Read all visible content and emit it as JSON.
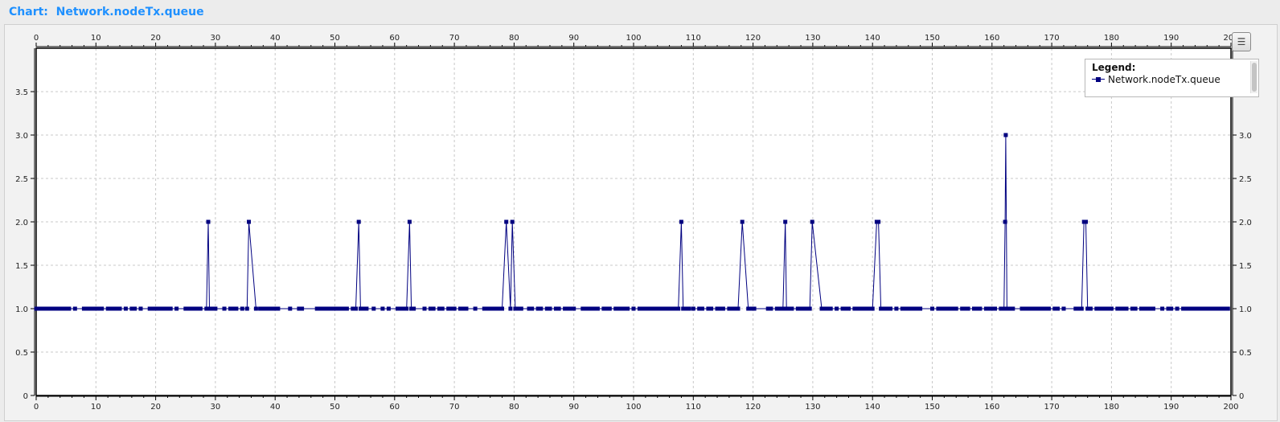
{
  "header": {
    "prefix": "Chart:",
    "name": "Network.nodeTx.queue"
  },
  "legend": {
    "title": "Legend:",
    "items": [
      "Network.nodeTx.queue"
    ]
  },
  "icons": {
    "legend_toggle": "list-icon"
  },
  "colors": {
    "series": "#000080",
    "title": "#1e90ff",
    "grid": "#c8c8c8"
  },
  "chart_data": {
    "type": "line",
    "title": "Network.nodeTx.queue",
    "xlabel": "",
    "ylabel": "",
    "xlim": [
      0,
      200
    ],
    "ylim": [
      0,
      4
    ],
    "x_ticks": [
      0,
      10,
      20,
      30,
      40,
      50,
      60,
      70,
      80,
      90,
      100,
      110,
      120,
      130,
      140,
      150,
      160,
      170,
      180,
      190,
      200
    ],
    "y_ticks": [
      0,
      0.5,
      1.0,
      1.5,
      2.0,
      2.5,
      3.0,
      3.5
    ],
    "y_tick_labels": [
      "0",
      "0.5",
      "1.0",
      "1.5",
      "2.0",
      "2.5",
      "3.0",
      "3.5"
    ],
    "x_axes": [
      "top",
      "bottom"
    ],
    "y_axes": [
      "left",
      "right"
    ],
    "grid": true,
    "legend_position": "top-right",
    "series": [
      {
        "name": "Network.nodeTx.queue",
        "marker": "square",
        "points": [
          [
            0,
            1
          ],
          [
            0.5,
            1
          ],
          [
            1,
            1
          ],
          [
            1.5,
            1
          ],
          [
            2,
            1
          ],
          [
            2.5,
            1
          ],
          [
            3,
            1
          ],
          [
            3.5,
            1
          ],
          [
            4,
            1
          ],
          [
            4.5,
            1
          ],
          [
            5,
            1
          ],
          [
            5.5,
            1
          ],
          [
            6.5,
            1
          ],
          [
            8,
            1
          ],
          [
            8.5,
            1
          ],
          [
            9,
            1
          ],
          [
            9.5,
            1
          ],
          [
            10,
            1
          ],
          [
            10.5,
            1
          ],
          [
            11,
            1
          ],
          [
            12,
            1
          ],
          [
            12.5,
            1
          ],
          [
            13,
            1
          ],
          [
            13.5,
            1
          ],
          [
            14,
            1
          ],
          [
            15,
            1
          ],
          [
            16,
            1
          ],
          [
            16.5,
            1
          ],
          [
            17.5,
            1
          ],
          [
            19,
            1
          ],
          [
            19.5,
            1
          ],
          [
            20,
            1
          ],
          [
            20.5,
            1
          ],
          [
            21,
            1
          ],
          [
            21.5,
            1
          ],
          [
            22,
            1
          ],
          [
            22.5,
            1
          ],
          [
            23.5,
            1
          ],
          [
            25,
            1
          ],
          [
            25.5,
            1
          ],
          [
            26,
            1
          ],
          [
            26.5,
            1
          ],
          [
            27,
            1
          ],
          [
            27.5,
            1
          ],
          [
            28.5,
            1
          ],
          [
            28.8,
            2
          ],
          [
            29,
            1
          ],
          [
            29.5,
            1
          ],
          [
            30,
            1
          ],
          [
            31.5,
            1
          ],
          [
            32.5,
            1
          ],
          [
            33,
            1
          ],
          [
            33.5,
            1
          ],
          [
            34.5,
            1
          ],
          [
            35.3,
            1
          ],
          [
            35.6,
            2
          ],
          [
            36.8,
            1
          ],
          [
            37.5,
            1
          ],
          [
            38,
            1
          ],
          [
            38.5,
            1
          ],
          [
            39,
            1
          ],
          [
            39.5,
            1
          ],
          [
            40,
            1
          ],
          [
            40.5,
            1
          ],
          [
            42.5,
            1
          ],
          [
            44,
            1
          ],
          [
            44.5,
            1
          ],
          [
            47,
            1
          ],
          [
            47.5,
            1
          ],
          [
            48,
            1
          ],
          [
            48.5,
            1
          ],
          [
            49,
            1
          ],
          [
            49.5,
            1
          ],
          [
            50,
            1
          ],
          [
            50.5,
            1
          ],
          [
            51,
            1
          ],
          [
            51.5,
            1
          ],
          [
            52,
            1
          ],
          [
            53,
            1
          ],
          [
            53.5,
            1
          ],
          [
            54,
            2
          ],
          [
            54.3,
            1
          ],
          [
            54.8,
            1
          ],
          [
            55.3,
            1
          ],
          [
            56.5,
            1
          ],
          [
            58,
            1
          ],
          [
            59,
            1
          ],
          [
            60.5,
            1
          ],
          [
            61,
            1
          ],
          [
            61.5,
            1
          ],
          [
            62,
            1
          ],
          [
            62.5,
            2
          ],
          [
            62.8,
            1
          ],
          [
            63.2,
            1
          ],
          [
            65,
            1
          ],
          [
            66,
            1
          ],
          [
            66.5,
            1
          ],
          [
            67.5,
            1
          ],
          [
            68,
            1
          ],
          [
            69,
            1
          ],
          [
            69.5,
            1
          ],
          [
            70,
            1
          ],
          [
            71,
            1
          ],
          [
            71.5,
            1
          ],
          [
            72,
            1
          ],
          [
            73.5,
            1
          ],
          [
            75,
            1
          ],
          [
            75.5,
            1
          ],
          [
            76,
            1
          ],
          [
            76.5,
            1
          ],
          [
            77,
            1
          ],
          [
            77.5,
            1
          ],
          [
            78,
            1
          ],
          [
            78.7,
            2
          ],
          [
            79.4,
            1
          ],
          [
            79.7,
            2
          ],
          [
            80.2,
            1
          ],
          [
            80.7,
            1
          ],
          [
            81.2,
            1
          ],
          [
            82.5,
            1
          ],
          [
            83,
            1
          ],
          [
            84,
            1
          ],
          [
            84.5,
            1
          ],
          [
            85.5,
            1
          ],
          [
            86,
            1
          ],
          [
            87,
            1
          ],
          [
            87.5,
            1
          ],
          [
            88.5,
            1
          ],
          [
            89,
            1
          ],
          [
            89.5,
            1
          ],
          [
            90,
            1
          ],
          [
            91.5,
            1
          ],
          [
            92,
            1
          ],
          [
            92.5,
            1
          ],
          [
            93,
            1
          ],
          [
            93.5,
            1
          ],
          [
            94,
            1
          ],
          [
            95,
            1
          ],
          [
            95.5,
            1
          ],
          [
            96,
            1
          ],
          [
            97,
            1
          ],
          [
            97.5,
            1
          ],
          [
            98,
            1
          ],
          [
            98.5,
            1
          ],
          [
            99,
            1
          ],
          [
            100,
            1
          ],
          [
            101,
            1
          ],
          [
            101.5,
            1
          ],
          [
            102,
            1
          ],
          [
            102.5,
            1
          ],
          [
            103,
            1
          ],
          [
            103.5,
            1
          ],
          [
            104,
            1
          ],
          [
            104.5,
            1
          ],
          [
            105,
            1
          ],
          [
            105.5,
            1
          ],
          [
            106,
            1
          ],
          [
            106.5,
            1
          ],
          [
            107,
            1
          ],
          [
            107.5,
            1
          ],
          [
            108,
            2
          ],
          [
            108.3,
            1
          ],
          [
            108.8,
            1
          ],
          [
            109.3,
            1
          ],
          [
            110,
            1
          ],
          [
            111,
            1
          ],
          [
            111.5,
            1
          ],
          [
            112.5,
            1
          ],
          [
            113,
            1
          ],
          [
            114,
            1
          ],
          [
            114.5,
            1
          ],
          [
            115,
            1
          ],
          [
            116,
            1
          ],
          [
            116.5,
            1
          ],
          [
            117,
            1
          ],
          [
            117.5,
            1
          ],
          [
            118.2,
            2
          ],
          [
            119.2,
            1
          ],
          [
            119.7,
            1
          ],
          [
            120.2,
            1
          ],
          [
            122.5,
            1
          ],
          [
            123,
            1
          ],
          [
            124,
            1
          ],
          [
            124.5,
            1
          ],
          [
            125,
            1
          ],
          [
            125.4,
            2
          ],
          [
            125.6,
            1
          ],
          [
            126,
            1
          ],
          [
            126.5,
            1
          ],
          [
            127.5,
            1
          ],
          [
            128,
            1
          ],
          [
            128.5,
            1
          ],
          [
            129,
            1
          ],
          [
            129.5,
            1
          ],
          [
            129.9,
            2
          ],
          [
            131.5,
            1
          ],
          [
            132,
            1
          ],
          [
            132.5,
            1
          ],
          [
            133,
            1
          ],
          [
            134,
            1
          ],
          [
            135,
            1
          ],
          [
            135.5,
            1
          ],
          [
            136,
            1
          ],
          [
            137,
            1
          ],
          [
            137.5,
            1
          ],
          [
            138,
            1
          ],
          [
            138.5,
            1
          ],
          [
            139,
            1
          ],
          [
            139.5,
            1
          ],
          [
            140,
            1
          ],
          [
            140.7,
            2
          ],
          [
            141,
            2
          ],
          [
            141.4,
            1
          ],
          [
            142,
            1
          ],
          [
            142.5,
            1
          ],
          [
            143,
            1
          ],
          [
            144,
            1
          ],
          [
            145,
            1
          ],
          [
            145.5,
            1
          ],
          [
            146,
            1
          ],
          [
            146.5,
            1
          ],
          [
            147,
            1
          ],
          [
            147.5,
            1
          ],
          [
            148,
            1
          ],
          [
            150,
            1
          ],
          [
            151,
            1
          ],
          [
            151.5,
            1
          ],
          [
            152,
            1
          ],
          [
            152.5,
            1
          ],
          [
            153,
            1
          ],
          [
            153.5,
            1
          ],
          [
            154,
            1
          ],
          [
            155,
            1
          ],
          [
            155.5,
            1
          ],
          [
            156,
            1
          ],
          [
            157,
            1
          ],
          [
            157.5,
            1
          ],
          [
            158,
            1
          ],
          [
            159,
            1
          ],
          [
            159.5,
            1
          ],
          [
            160,
            1
          ],
          [
            160.5,
            1
          ],
          [
            161.5,
            1
          ],
          [
            162,
            1
          ],
          [
            162.2,
            2
          ],
          [
            162.3,
            3
          ],
          [
            162.5,
            1
          ],
          [
            163,
            1
          ],
          [
            163.5,
            1
          ],
          [
            165,
            1
          ],
          [
            165.5,
            1
          ],
          [
            166,
            1
          ],
          [
            166.5,
            1
          ],
          [
            167,
            1
          ],
          [
            167.5,
            1
          ],
          [
            168,
            1
          ],
          [
            168.5,
            1
          ],
          [
            169,
            1
          ],
          [
            169.5,
            1
          ],
          [
            170.5,
            1
          ],
          [
            171,
            1
          ],
          [
            172,
            1
          ],
          [
            174,
            1
          ],
          [
            174.5,
            1
          ],
          [
            175,
            1
          ],
          [
            175.4,
            2
          ],
          [
            175.7,
            2
          ],
          [
            176,
            1
          ],
          [
            176.5,
            1
          ],
          [
            177.5,
            1
          ],
          [
            178,
            1
          ],
          [
            178.5,
            1
          ],
          [
            179,
            1
          ],
          [
            179.5,
            1
          ],
          [
            180,
            1
          ],
          [
            181,
            1
          ],
          [
            181.5,
            1
          ],
          [
            182,
            1
          ],
          [
            182.5,
            1
          ],
          [
            183.5,
            1
          ],
          [
            184,
            1
          ],
          [
            185,
            1
          ],
          [
            185.5,
            1
          ],
          [
            186,
            1
          ],
          [
            186.5,
            1
          ],
          [
            187,
            1
          ],
          [
            188.5,
            1
          ],
          [
            189.5,
            1
          ],
          [
            190,
            1
          ],
          [
            191,
            1
          ],
          [
            192,
            1
          ],
          [
            192.5,
            1
          ],
          [
            193,
            1
          ],
          [
            193.5,
            1
          ],
          [
            194,
            1
          ],
          [
            194.5,
            1
          ],
          [
            195,
            1
          ],
          [
            195.5,
            1
          ],
          [
            196,
            1
          ],
          [
            196.5,
            1
          ],
          [
            197,
            1
          ],
          [
            197.5,
            1
          ],
          [
            198,
            1
          ],
          [
            198.5,
            1
          ],
          [
            199,
            1
          ],
          [
            199.5,
            1
          ]
        ]
      }
    ]
  }
}
